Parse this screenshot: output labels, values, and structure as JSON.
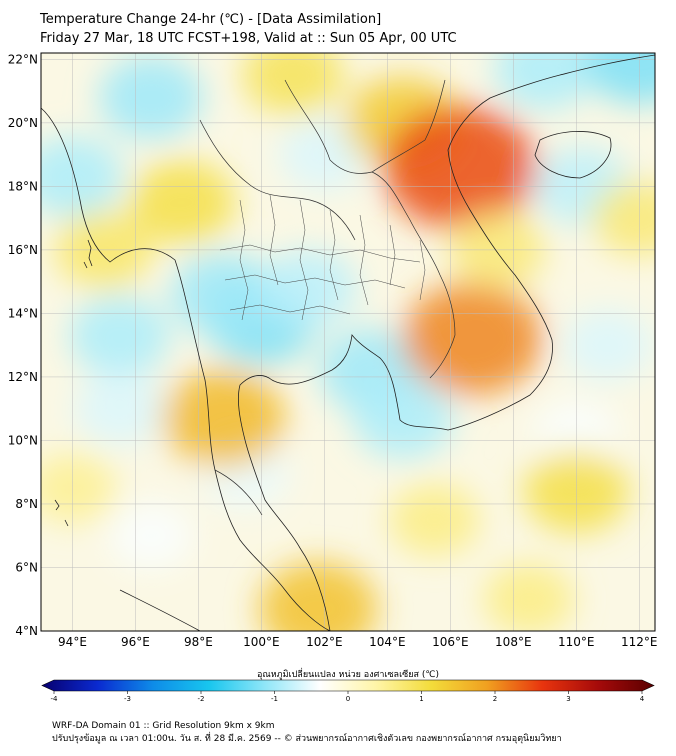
{
  "header": {
    "title": "Temperature Change 24-hr (℃) - [Data Assimilation]",
    "subtitle": "Friday 27 Mar, 18 UTC FCST+198, Valid at :: Sun 05 Apr, 00 UTC"
  },
  "map": {
    "lon_range": [
      93,
      112.5
    ],
    "lat_range": [
      4,
      22.2
    ],
    "lon_ticks": [
      "94°E",
      "96°E",
      "98°E",
      "100°E",
      "102°E",
      "104°E",
      "106°E",
      "108°E",
      "110°E",
      "112°E"
    ],
    "lon_tick_values": [
      94,
      96,
      98,
      100,
      102,
      104,
      106,
      108,
      110,
      112
    ],
    "lat_ticks": [
      "22°N",
      "20°N",
      "18°N",
      "16°N",
      "14°N",
      "12°N",
      "10°N",
      "8°N",
      "6°N",
      "4°N"
    ],
    "lat_tick_values": [
      22,
      20,
      18,
      16,
      14,
      12,
      10,
      8,
      6,
      4
    ],
    "grid": true,
    "field_blobs": [
      {
        "lon": 96.5,
        "lat": 20.8,
        "value": -1.0
      },
      {
        "lon": 94.0,
        "lat": 18.3,
        "value": -0.9
      },
      {
        "lon": 100.0,
        "lat": 13.8,
        "value": -1.2
      },
      {
        "lon": 98.8,
        "lat": 14.6,
        "value": -1.0
      },
      {
        "lon": 103.5,
        "lat": 12.2,
        "value": -1.0
      },
      {
        "lon": 104.5,
        "lat": 10.7,
        "value": -0.9
      },
      {
        "lon": 101.5,
        "lat": 14.8,
        "value": -0.8
      },
      {
        "lon": 95.5,
        "lat": 13.3,
        "value": -0.9
      },
      {
        "lon": 95.5,
        "lat": 11.0,
        "value": -0.6
      },
      {
        "lon": 110.2,
        "lat": 18.0,
        "value": -0.8
      },
      {
        "lon": 109.0,
        "lat": 21.7,
        "value": -0.9
      },
      {
        "lon": 112.0,
        "lat": 22.0,
        "value": -1.2
      },
      {
        "lon": 111.0,
        "lat": 13.0,
        "value": -0.6
      },
      {
        "lon": 110.0,
        "lat": 10.2,
        "value": -0.4
      },
      {
        "lon": 99.5,
        "lat": 9.0,
        "value": -0.5
      },
      {
        "lon": 102.0,
        "lat": 19.0,
        "value": -0.6
      },
      {
        "lon": 96.5,
        "lat": 7.0,
        "value": -0.4
      },
      {
        "lon": 104.5,
        "lat": 20.0,
        "value": 1.3
      },
      {
        "lon": 106.3,
        "lat": 18.6,
        "value": 2.4
      },
      {
        "lon": 106.7,
        "lat": 13.2,
        "value": 2.0
      },
      {
        "lon": 98.8,
        "lat": 10.7,
        "value": 1.5
      },
      {
        "lon": 101.8,
        "lat": 4.7,
        "value": 1.4
      },
      {
        "lon": 97.5,
        "lat": 17.5,
        "value": 1.0
      },
      {
        "lon": 101.0,
        "lat": 21.5,
        "value": 0.9
      },
      {
        "lon": 95.0,
        "lat": 16.0,
        "value": 0.8
      },
      {
        "lon": 110.0,
        "lat": 8.4,
        "value": 1.0
      },
      {
        "lon": 107.5,
        "lat": 16.0,
        "value": 0.7
      },
      {
        "lon": 105.5,
        "lat": 7.5,
        "value": 0.6
      },
      {
        "lon": 94.0,
        "lat": 8.5,
        "value": 0.5
      },
      {
        "lon": 108.5,
        "lat": 5.0,
        "value": 0.6
      },
      {
        "lon": 112.0,
        "lat": 17.0,
        "value": 0.7
      }
    ]
  },
  "colorbar": {
    "title": "อุณหภูมิเปลี่ยนแปลง หน่วย องศาเซลเซียส (℃)",
    "range": [
      -4,
      4
    ],
    "tick_labels": [
      "-4",
      "-3",
      "-2",
      "-1",
      "0",
      "1",
      "2",
      "3",
      "4"
    ],
    "tick_values": [
      -4,
      -3,
      -2,
      -1,
      0,
      1,
      2,
      3,
      4
    ],
    "colors": [
      "#08006f",
      "#0a2ad0",
      "#0e8ce8",
      "#18c6ee",
      "#8fe6f8",
      "#ffffff",
      "#fff5a8",
      "#f3dc3a",
      "#f0a020",
      "#e8340e",
      "#a50a0a",
      "#5a0000"
    ]
  },
  "footer": {
    "line1": "WRF-DA Domain 01 :: Grid Resolution 9km x 9km",
    "line2": "ปรับปรุงข้อมูล ณ เวลา 01:00น. วัน ส. ที่ 28 มี.ค. 2569 -- © ส่วนพยากรณ์อากาศเชิงตัวเลข กองพยากรณ์อากาศ กรมอุตุนิยมวิทยา"
  }
}
